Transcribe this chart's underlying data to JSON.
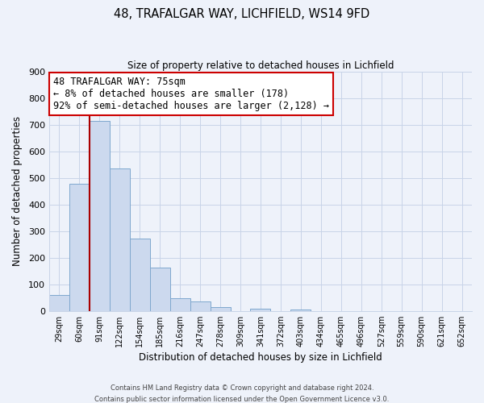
{
  "title": "48, TRAFALGAR WAY, LICHFIELD, WS14 9FD",
  "subtitle": "Size of property relative to detached houses in Lichfield",
  "xlabel": "Distribution of detached houses by size in Lichfield",
  "ylabel": "Number of detached properties",
  "bar_labels": [
    "29sqm",
    "60sqm",
    "91sqm",
    "122sqm",
    "154sqm",
    "185sqm",
    "216sqm",
    "247sqm",
    "278sqm",
    "309sqm",
    "341sqm",
    "372sqm",
    "403sqm",
    "434sqm",
    "465sqm",
    "496sqm",
    "527sqm",
    "559sqm",
    "590sqm",
    "621sqm",
    "652sqm"
  ],
  "bar_values": [
    60,
    478,
    714,
    537,
    272,
    163,
    48,
    35,
    14,
    0,
    8,
    0,
    5,
    0,
    0,
    0,
    0,
    0,
    0,
    0,
    0
  ],
  "bar_color": "#ccd9ee",
  "bar_edge_color": "#7fa8ce",
  "vline_color": "#aa0000",
  "ylim": [
    0,
    900
  ],
  "yticks": [
    0,
    100,
    200,
    300,
    400,
    500,
    600,
    700,
    800,
    900
  ],
  "annotation_title": "48 TRAFALGAR WAY: 75sqm",
  "annotation_line1": "← 8% of detached houses are smaller (178)",
  "annotation_line2": "92% of semi-detached houses are larger (2,128) →",
  "annotation_box_color": "#cc0000",
  "footer1": "Contains HM Land Registry data © Crown copyright and database right 2024.",
  "footer2": "Contains public sector information licensed under the Open Government Licence v3.0.",
  "background_color": "#eef2fa",
  "grid_color": "#c8d4e8"
}
